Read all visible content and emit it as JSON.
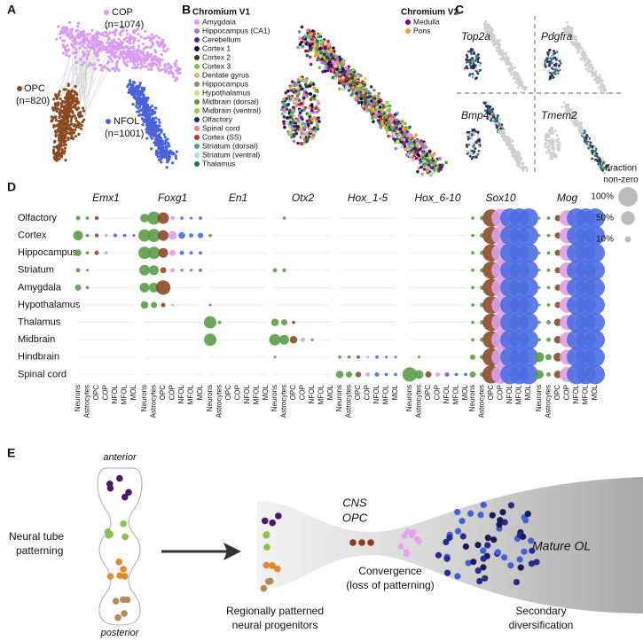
{
  "panel_labels": [
    "A",
    "B",
    "C",
    "D",
    "E"
  ],
  "panel_a": {
    "clusters": [
      {
        "name": "COP",
        "n": "(n=1074)",
        "color": "#d89cf0"
      },
      {
        "name": "OPC",
        "n": "(n=820)",
        "color": "#8b4a20"
      },
      {
        "name": "NFOL",
        "n": "(n=1001)",
        "color": "#4b63d8"
      }
    ]
  },
  "panel_b": {
    "v1_title": "Chromium V1",
    "v1_items": [
      {
        "name": "Amygdala",
        "color": "#e39be6"
      },
      {
        "name": "Hippocampus (CA1)",
        "color": "#b070d0"
      },
      {
        "name": "Cerebellum",
        "color": "#5a2a6a"
      },
      {
        "name": "Cortex 1",
        "color": "#1a1040"
      },
      {
        "name": "Cortex 2",
        "color": "#3a3a3a"
      },
      {
        "name": "Cortex 3",
        "color": "#7ac142"
      },
      {
        "name": "Dentate gyrus",
        "color": "#e8b060"
      },
      {
        "name": "Hippocampus",
        "color": "#8a8a8a"
      },
      {
        "name": "Hypothalamus",
        "color": "#c8e07a"
      },
      {
        "name": "Midbrain (dorsal)",
        "color": "#6a8a3a"
      },
      {
        "name": "Midbrain (ventral)",
        "color": "#9acd32"
      },
      {
        "name": "Olfactory",
        "color": "#1a2a6a"
      },
      {
        "name": "Spinal cord",
        "color": "#f08080"
      },
      {
        "name": "Cortex (SS)",
        "color": "#c03030"
      },
      {
        "name": "Striatum (dorsal)",
        "color": "#50a0a0"
      },
      {
        "name": "Striatum (ventral)",
        "color": "#a0e0e0"
      },
      {
        "name": "Thalamus",
        "color": "#207050"
      }
    ],
    "v2_title": "Chromium V2",
    "v2_items": [
      {
        "name": "Medulla",
        "color": "#800080"
      },
      {
        "name": "Pons",
        "color": "#e8a030"
      }
    ]
  },
  "panel_c": {
    "genes": [
      "Top2a",
      "Pdgfra",
      "Bmp4",
      "Tmem2"
    ]
  },
  "panel_d": {
    "genes": [
      "Emx1",
      "Foxg1",
      "En1",
      "Otx2",
      "Hox_1-5",
      "Hox_6-10",
      "Sox10",
      "Mog"
    ],
    "regions": [
      "Olfactory",
      "Cortex",
      "Hippocampus",
      "Striatum",
      "Amygdala",
      "Hypothalamus",
      "Thalamus",
      "Midbrain",
      "Hindbrain",
      "Spinal cord"
    ],
    "cell_types": [
      "Neurons",
      "Astrocytes",
      "OPC",
      "COP",
      "NFOL",
      "MFOL",
      "MOL"
    ],
    "cell_type_colors": [
      "#5c9c48",
      "#5c9c48",
      "#8b4a2b",
      "#dca0e8",
      "#4d6ee0",
      "#4d6ee0",
      "#4d6ee0"
    ],
    "size_title": [
      "Fraction",
      "non-zero"
    ],
    "size_legend": [
      {
        "value": 100,
        "label": "100%"
      },
      {
        "value": 50,
        "label": "50%"
      },
      {
        "value": 10,
        "label": "10%"
      }
    ],
    "values": [
      [
        [
          5,
          3,
          4,
          0,
          0,
          0,
          0
        ],
        [
          25,
          3,
          4,
          3,
          4,
          3,
          2
        ],
        [
          12,
          3,
          5,
          3,
          0,
          0,
          0
        ],
        [
          5,
          2,
          0,
          0,
          0,
          0,
          0
        ],
        [
          10,
          3,
          0,
          0,
          0,
          0,
          0
        ],
        [
          0,
          0,
          0,
          0,
          0,
          0,
          0
        ],
        [
          0,
          0,
          0,
          0,
          0,
          0,
          0
        ],
        [
          0,
          0,
          0,
          0,
          0,
          0,
          0
        ],
        [
          0,
          0,
          0,
          0,
          0,
          0,
          0
        ],
        [
          0,
          0,
          0,
          0,
          0,
          0,
          0
        ]
      ],
      [
        [
          20,
          45,
          35,
          5,
          3,
          2,
          3
        ],
        [
          40,
          45,
          30,
          20,
          12,
          5,
          8
        ],
        [
          40,
          40,
          25,
          10,
          5,
          3,
          3
        ],
        [
          30,
          25,
          10,
          5,
          2,
          2,
          3
        ],
        [
          25,
          25,
          55,
          0,
          0,
          0,
          0
        ],
        [
          15,
          10,
          5,
          2,
          0,
          0,
          0
        ],
        [
          0,
          0,
          0,
          0,
          0,
          0,
          0
        ],
        [
          0,
          0,
          0,
          0,
          0,
          0,
          0
        ],
        [
          0,
          0,
          0,
          0,
          0,
          0,
          0
        ],
        [
          0,
          0,
          0,
          0,
          0,
          0,
          0
        ]
      ],
      [
        [
          0,
          0,
          0,
          0,
          0,
          0,
          0
        ],
        [
          3,
          0,
          0,
          0,
          0,
          0,
          0
        ],
        [
          0,
          0,
          0,
          0,
          0,
          0,
          0
        ],
        [
          0,
          0,
          0,
          0,
          0,
          0,
          0
        ],
        [
          0,
          0,
          0,
          0,
          0,
          0,
          0
        ],
        [
          2,
          0,
          0,
          0,
          0,
          0,
          0
        ],
        [
          40,
          3,
          0,
          0,
          0,
          0,
          0
        ],
        [
          40,
          0,
          0,
          0,
          0,
          0,
          0
        ],
        [
          0,
          0,
          0,
          0,
          0,
          0,
          0
        ],
        [
          0,
          0,
          0,
          0,
          0,
          0,
          0
        ]
      ],
      [
        [
          0,
          3,
          0,
          0,
          0,
          0,
          0
        ],
        [
          0,
          0,
          0,
          0,
          0,
          0,
          0
        ],
        [
          0,
          0,
          0,
          0,
          0,
          0,
          0
        ],
        [
          5,
          4,
          0,
          0,
          0,
          0,
          0
        ],
        [
          0,
          0,
          0,
          0,
          0,
          0,
          0
        ],
        [
          0,
          0,
          0,
          0,
          0,
          0,
          0
        ],
        [
          15,
          10,
          3,
          0,
          0,
          0,
          0
        ],
        [
          35,
          25,
          15,
          5,
          2,
          0,
          0
        ],
        [
          2,
          0,
          0,
          0,
          0,
          0,
          0
        ],
        [
          0,
          0,
          0,
          0,
          0,
          0,
          0
        ]
      ],
      [
        [
          0,
          0,
          0,
          0,
          0,
          0,
          0
        ],
        [
          0,
          0,
          0,
          0,
          0,
          0,
          0
        ],
        [
          0,
          0,
          0,
          0,
          0,
          0,
          0
        ],
        [
          0,
          0,
          0,
          0,
          0,
          0,
          0
        ],
        [
          0,
          0,
          0,
          0,
          0,
          0,
          0
        ],
        [
          0,
          0,
          0,
          0,
          0,
          0,
          0
        ],
        [
          0,
          0,
          0,
          0,
          0,
          0,
          0
        ],
        [
          0,
          0,
          0,
          0,
          0,
          0,
          0
        ],
        [
          3,
          3,
          3,
          2,
          3,
          2,
          2
        ],
        [
          15,
          10,
          8,
          5,
          5,
          3,
          3
        ]
      ],
      [
        [
          0,
          0,
          0,
          0,
          0,
          0,
          0
        ],
        [
          0,
          0,
          0,
          0,
          0,
          0,
          0
        ],
        [
          0,
          0,
          0,
          0,
          0,
          0,
          0
        ],
        [
          0,
          0,
          0,
          0,
          0,
          0,
          0
        ],
        [
          0,
          0,
          0,
          0,
          0,
          0,
          0
        ],
        [
          0,
          0,
          0,
          0,
          0,
          0,
          0
        ],
        [
          0,
          0,
          0,
          0,
          0,
          0,
          0
        ],
        [
          0,
          0,
          0,
          0,
          0,
          0,
          0
        ],
        [
          0,
          2,
          0,
          0,
          0,
          0,
          0
        ],
        [
          55,
          20,
          10,
          5,
          5,
          3,
          3
        ]
      ],
      [
        [
          3,
          5,
          80,
          90,
          100,
          100,
          100
        ],
        [
          3,
          5,
          80,
          90,
          100,
          100,
          100
        ],
        [
          3,
          5,
          80,
          90,
          100,
          100,
          100
        ],
        [
          3,
          5,
          80,
          90,
          100,
          100,
          100
        ],
        [
          3,
          5,
          80,
          90,
          100,
          100,
          100
        ],
        [
          3,
          5,
          80,
          90,
          100,
          100,
          100
        ],
        [
          3,
          5,
          80,
          90,
          100,
          100,
          100
        ],
        [
          3,
          5,
          80,
          90,
          100,
          100,
          100
        ],
        [
          8,
          5,
          85,
          90,
          100,
          100,
          100
        ],
        [
          10,
          5,
          85,
          90,
          100,
          100,
          100
        ]
      ],
      [
        [
          2,
          3,
          10,
          65,
          100,
          100,
          100
        ],
        [
          2,
          3,
          10,
          65,
          100,
          100,
          100
        ],
        [
          2,
          3,
          10,
          65,
          100,
          100,
          100
        ],
        [
          2,
          3,
          10,
          65,
          100,
          100,
          100
        ],
        [
          2,
          3,
          10,
          65,
          100,
          100,
          100
        ],
        [
          2,
          3,
          10,
          65,
          100,
          100,
          100
        ],
        [
          3,
          5,
          15,
          60,
          100,
          100,
          100
        ],
        [
          3,
          5,
          15,
          60,
          100,
          100,
          100
        ],
        [
          25,
          10,
          20,
          60,
          100,
          100,
          100
        ],
        [
          20,
          5,
          15,
          60,
          100,
          100,
          100
        ]
      ]
    ]
  },
  "panel_e": {
    "anterior": "anterior",
    "posterior": "posterior",
    "neural_tube": [
      "Neural tube",
      "patterning"
    ],
    "cns_opc": [
      "CNS",
      "OPC"
    ],
    "convergence": [
      "Convergence",
      "(loss of patterning)"
    ],
    "mature": "Mature OL",
    "progenitors": [
      "Regionally patterned",
      "neural progenitors"
    ],
    "secondary": [
      "Secondary",
      "diversification"
    ]
  }
}
